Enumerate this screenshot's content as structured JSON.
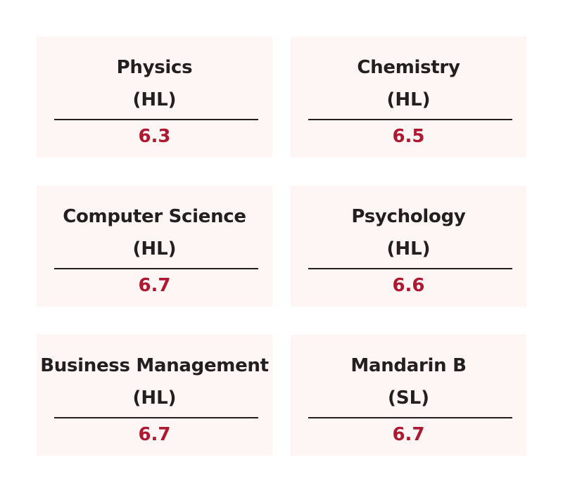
{
  "subjects": [
    {
      "name": "Physics",
      "level": "(HL)",
      "score": "6.3"
    },
    {
      "name": "Chemistry",
      "level": "(HL)",
      "score": "6.5"
    },
    {
      "name": "Computer Science",
      "level": "(HL)",
      "score": "6.7"
    },
    {
      "name": "Psychology",
      "level": "(HL)",
      "score": "6.6"
    },
    {
      "name": "Business Management",
      "level": "(HL)",
      "score": "6.7"
    },
    {
      "name": "Mandarin B",
      "level": "(SL)",
      "score": "6.7"
    }
  ],
  "colors": {
    "card_background": "#fdf6f5",
    "text": "#231f20",
    "score": "#b01831"
  }
}
